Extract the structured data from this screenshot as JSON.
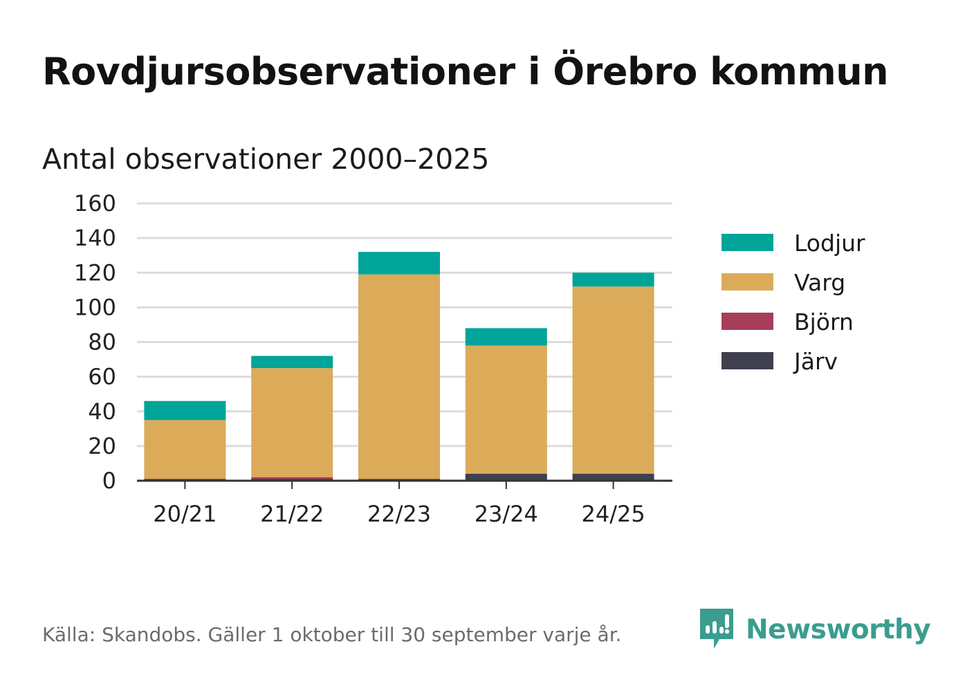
{
  "title": "Rovdjursobservationer i Örebro kommun",
  "subtitle": "Antal observationer 2000–2025",
  "source": "Källa: Skandobs. Gäller 1 oktober till 30 september varje år.",
  "brand": {
    "name": "Newsworthy",
    "icon": "newsworthy-logo-icon",
    "color": "#3a9d8f"
  },
  "chart_data": {
    "type": "bar",
    "stacked": true,
    "categories": [
      "20/21",
      "21/22",
      "22/23",
      "23/24",
      "24/25"
    ],
    "series": [
      {
        "name": "Järv",
        "color": "#3f3f4f",
        "values": [
          1,
          1,
          1,
          4,
          4
        ]
      },
      {
        "name": "Björn",
        "color": "#a63e5c",
        "values": [
          0,
          1,
          0,
          0,
          0
        ]
      },
      {
        "name": "Varg",
        "color": "#dbab5a",
        "values": [
          34,
          63,
          118,
          74,
          108
        ]
      },
      {
        "name": "Lodjur",
        "color": "#00a499",
        "values": [
          11,
          7,
          13,
          10,
          8
        ]
      }
    ],
    "legend_order": [
      "Lodjur",
      "Varg",
      "Björn",
      "Järv"
    ],
    "legend_position": "right",
    "ylim": [
      0,
      160
    ],
    "yticks": [
      0,
      20,
      40,
      60,
      80,
      100,
      120,
      140,
      160
    ],
    "grid": true
  }
}
